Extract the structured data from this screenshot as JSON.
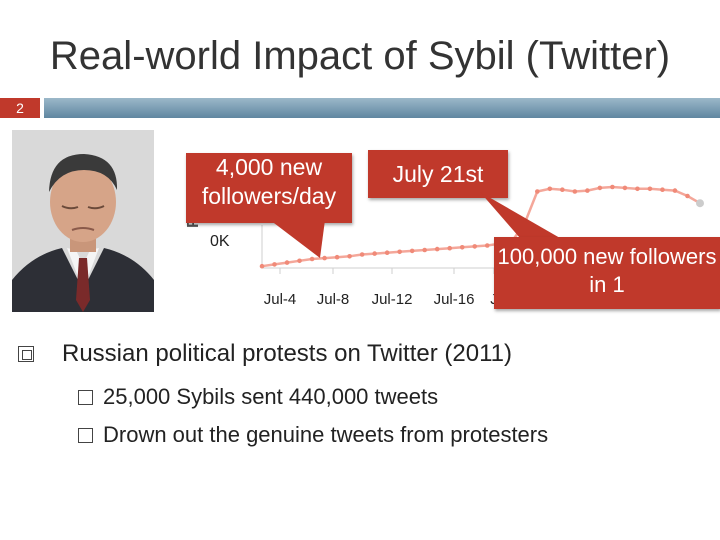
{
  "slide": {
    "title": "Real-world Impact of Sybil (Twitter)",
    "number": "2",
    "colors": {
      "accent": "#c0392b",
      "rule": "#7b9db3",
      "line": "#f0a090"
    }
  },
  "photo": {
    "icon": "person-portrait"
  },
  "callouts": {
    "followers_per_day": "4,000 new followers/day",
    "date": "July 21st",
    "burst": "100,000 new followers in 1"
  },
  "chart_data": {
    "type": "line",
    "ylabel": "F",
    "y_tick": "0K",
    "x_ticks": [
      "Jul-4",
      "Jul-8",
      "Jul-12",
      "Jul-16",
      "J"
    ],
    "series": [
      {
        "values": [
          0.02,
          0.04,
          0.06,
          0.08,
          0.1,
          0.11,
          0.12,
          0.13,
          0.15,
          0.16,
          0.17,
          0.18,
          0.19,
          0.2,
          0.21,
          0.22,
          0.23,
          0.24,
          0.25,
          0.27,
          0.3,
          0.5,
          0.85,
          0.88,
          0.87,
          0.85,
          0.86,
          0.89,
          0.9,
          0.89,
          0.88,
          0.88,
          0.87,
          0.86,
          0.8,
          0.72
        ]
      }
    ],
    "grid": false,
    "legend": "none"
  },
  "bullets": {
    "main": "Russian political protests on Twitter (2011)",
    "sub": [
      "25,000 Sybils sent 440,000 tweets",
      "Drown out the genuine tweets from protesters"
    ]
  }
}
